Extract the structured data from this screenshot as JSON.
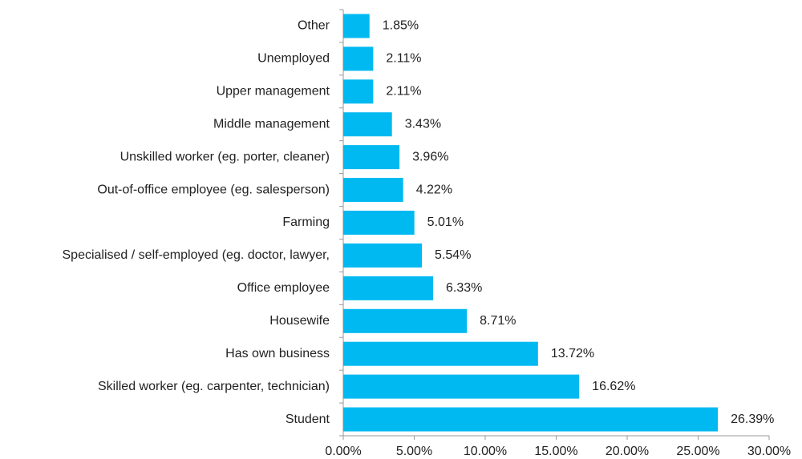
{
  "chart_data": {
    "type": "bar",
    "orientation": "horizontal",
    "color": "#00b9f1",
    "categories": [
      "Other",
      "Unemployed",
      "Upper management",
      "Middle management",
      "Unskilled worker (eg. porter, cleaner)",
      "Out-of-office employee (eg. salesperson)",
      "Farming",
      "Specialised / self-employed (eg. doctor, lawyer,",
      "Office employee",
      "Housewife",
      "Has own business",
      "Skilled worker (eg. carpenter, technician)",
      "Student"
    ],
    "values": [
      1.85,
      2.11,
      2.11,
      3.43,
      3.96,
      4.22,
      5.01,
      5.54,
      6.33,
      8.71,
      13.72,
      16.62,
      26.39
    ],
    "value_labels": [
      "1.85%",
      "2.11%",
      "2.11%",
      "3.43%",
      "3.96%",
      "4.22%",
      "5.01%",
      "5.54%",
      "6.33%",
      "8.71%",
      "13.72%",
      "16.62%",
      "26.39%"
    ],
    "xlim": [
      0,
      30
    ],
    "xticks": [
      {
        "value": 0,
        "label": "0.00%"
      },
      {
        "value": 5,
        "label": "5.00%"
      },
      {
        "value": 10,
        "label": "10.00%"
      },
      {
        "value": 15,
        "label": "15.00%"
      },
      {
        "value": 20,
        "label": "20.00%"
      },
      {
        "value": 25,
        "label": "25.00%"
      },
      {
        "value": 30,
        "label": "30.00%"
      }
    ]
  }
}
